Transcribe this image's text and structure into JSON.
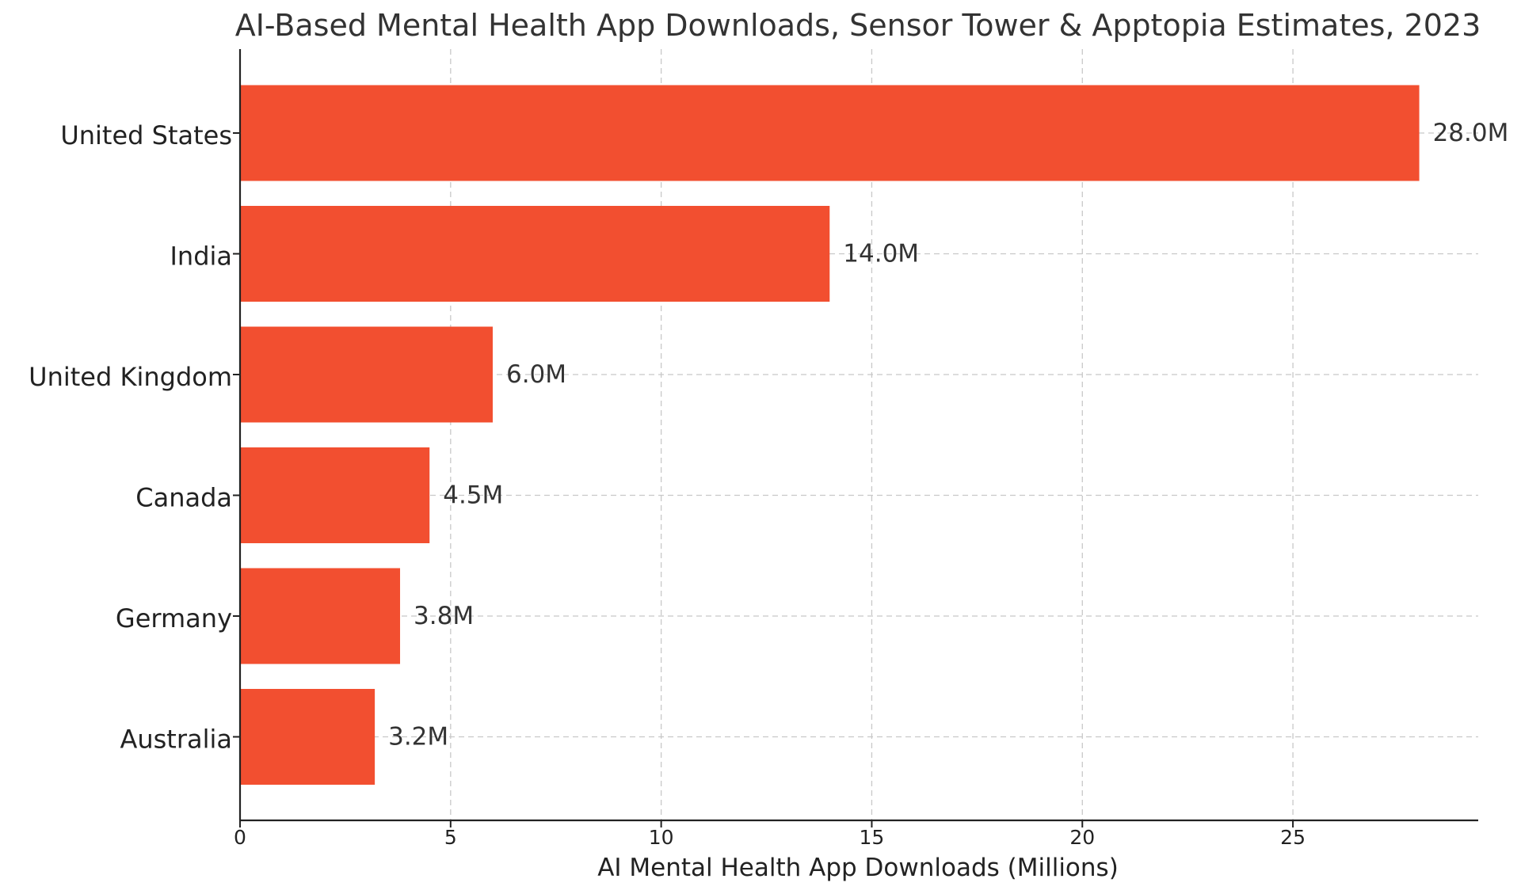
{
  "chart_data": {
    "type": "bar",
    "orientation": "horizontal",
    "title": "AI-Based Mental Health App Downloads, Sensor Tower & Apptopia Estimates, 2023",
    "xlabel": "AI Mental Health App Downloads (Millions)",
    "ylabel": "",
    "categories": [
      "United States",
      "India",
      "United Kingdom",
      "Canada",
      "Germany",
      "Australia"
    ],
    "values": [
      28.0,
      14.0,
      6.0,
      4.5,
      3.8,
      3.2
    ],
    "data_labels": [
      "28.0M",
      "14.0M",
      "6.0M",
      "4.5M",
      "3.8M",
      "3.2M"
    ],
    "xlim": [
      0,
      29.4
    ],
    "xticks": [
      0,
      5,
      10,
      15,
      20,
      25
    ],
    "xtick_labels": [
      "0",
      "5",
      "10",
      "15",
      "20",
      "25"
    ],
    "grid": true,
    "bar_color": "#f24f30",
    "axis_color": "#222222",
    "grid_color": "#c8c8c8"
  }
}
